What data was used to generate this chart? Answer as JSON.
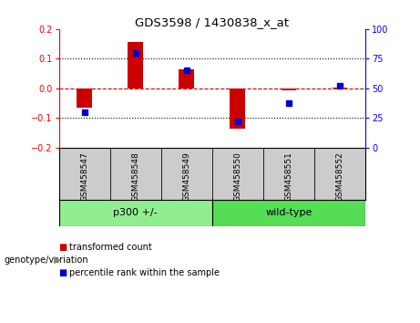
{
  "title": "GDS3598 / 1430838_x_at",
  "samples": [
    "GSM458547",
    "GSM458548",
    "GSM458549",
    "GSM458550",
    "GSM458551",
    "GSM458552"
  ],
  "red_values": [
    -0.065,
    0.155,
    0.065,
    -0.135,
    -0.005,
    0.003
  ],
  "blue_values": [
    30,
    80,
    65,
    22,
    38,
    52
  ],
  "group_label": "genotype/variation",
  "groups": [
    {
      "label": "p300 +/-",
      "start": 0,
      "end": 2,
      "color": "#90EE90"
    },
    {
      "label": "wild-type",
      "start": 3,
      "end": 5,
      "color": "#55DD55"
    }
  ],
  "ylim_left": [
    -0.2,
    0.2
  ],
  "ylim_right": [
    0,
    100
  ],
  "yticks_left": [
    -0.2,
    -0.1,
    0.0,
    0.1,
    0.2
  ],
  "yticks_right": [
    0,
    25,
    50,
    75,
    100
  ],
  "red_color": "#CC0000",
  "blue_color": "#0000CC",
  "zero_line_color": "#CC0000",
  "dotted_line_color": "#000000",
  "bg_color": "#FFFFFF",
  "label_bg": "#CCCCCC",
  "legend_red": "transformed count",
  "legend_blue": "percentile rank within the sample"
}
